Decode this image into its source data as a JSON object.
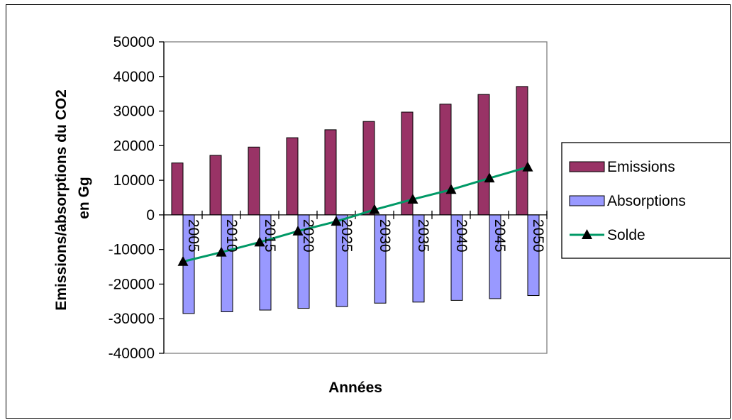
{
  "chart_data": {
    "type": "bar",
    "title": "",
    "xlabel": "Années",
    "ylabel_lines": [
      "Emissions/absorptions du CO2",
      "en Gg"
    ],
    "categories": [
      "2005",
      "2010",
      "2015",
      "2020",
      "2025",
      "2030",
      "2035",
      "2040",
      "2045",
      "2050"
    ],
    "ylim": [
      -40000,
      50000
    ],
    "yticks": [
      50000,
      40000,
      30000,
      20000,
      10000,
      0,
      -10000,
      -20000,
      -30000,
      -40000
    ],
    "grid": false,
    "legend_position": "right",
    "series": [
      {
        "name": "Emissions",
        "kind": "bar",
        "color": "#993366",
        "values": [
          15000,
          17200,
          19600,
          22300,
          24600,
          27000,
          29700,
          32000,
          34800,
          37100
        ]
      },
      {
        "name": "Absorptions",
        "kind": "bar",
        "color": "#9999FF",
        "values": [
          -28500,
          -28000,
          -27500,
          -27000,
          -26500,
          -25500,
          -25200,
          -24700,
          -24200,
          -23300
        ]
      },
      {
        "name": "Solde",
        "kind": "line",
        "color": "#009966",
        "marker": "triangle",
        "values": [
          -13500,
          -10800,
          -7900,
          -4700,
          -1900,
          1500,
          4500,
          7300,
          10600,
          13800
        ]
      }
    ]
  }
}
